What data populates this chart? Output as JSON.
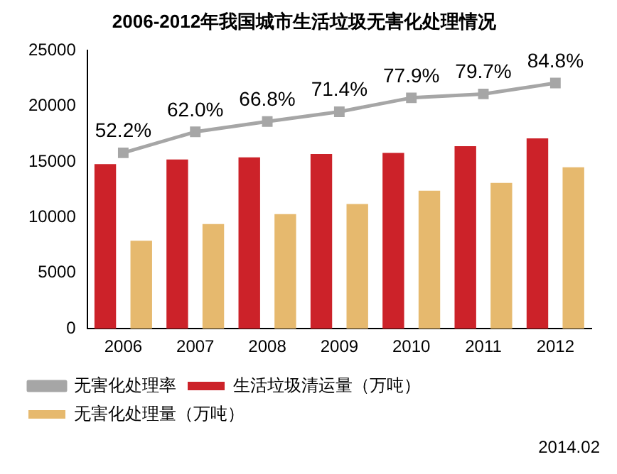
{
  "chart_data": {
    "type": "bar",
    "title": "2006-2012年我国城市生活垃圾无害化处理情况",
    "categories": [
      "2006",
      "2007",
      "2008",
      "2009",
      "2010",
      "2011",
      "2012"
    ],
    "series": [
      {
        "name": "生活垃圾清运量（万吨）",
        "color": "#cc2229",
        "values": [
          14800,
          15200,
          15400,
          15700,
          15800,
          16400,
          17100
        ]
      },
      {
        "name": "无害化处理量（万吨）",
        "color": "#e6b96e",
        "values": [
          7900,
          9400,
          10300,
          11200,
          12400,
          13100,
          14500
        ]
      },
      {
        "name": "无害化处理率",
        "type": "line",
        "axis": "y2",
        "color": "#a6a6a6",
        "marker": "square",
        "values": [
          52.2,
          62.0,
          66.8,
          71.4,
          77.9,
          79.7,
          84.8
        ],
        "value_labels": [
          "52.2%",
          "62.0%",
          "66.8%",
          "71.4%",
          "77.9%",
          "79.7%",
          "84.8%"
        ]
      }
    ],
    "ylim": [
      0,
      25000
    ],
    "yticks": [
      0,
      5000,
      10000,
      15000,
      20000,
      25000
    ],
    "y2lim": [
      -30,
      100
    ],
    "grid": false,
    "legend": "bottom",
    "annotations": [
      "2014.02"
    ]
  }
}
